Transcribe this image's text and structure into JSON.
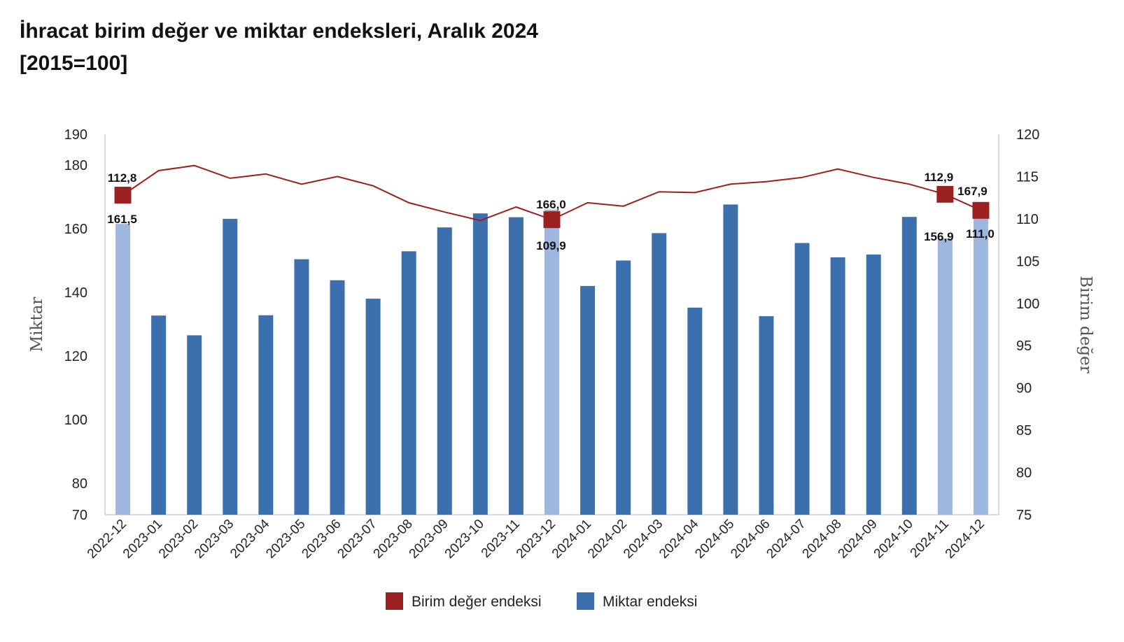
{
  "chart_data": {
    "type": "bar",
    "title": "İhracat birim değer ve miktar endeksleri, Aralık 2024",
    "subtitle": "[2015=100]",
    "xlabel": "",
    "ylabel": "Miktar",
    "y2label": "Birim değer",
    "ylim": [
      70,
      190
    ],
    "y2lim": [
      75,
      120
    ],
    "yticks": [
      "70",
      "80",
      "100",
      "120",
      "140",
      "160",
      "180",
      "190"
    ],
    "y2ticks": [
      "75",
      "80",
      "85",
      "90",
      "95",
      "100",
      "105",
      "110",
      "115",
      "120"
    ],
    "categories": [
      "2022-12",
      "2023-01",
      "2023-02",
      "2023-03",
      "2023-04",
      "2023-05",
      "2023-06",
      "2023-07",
      "2023-08",
      "2023-09",
      "2023-10",
      "2023-11",
      "2023-12",
      "2024-01",
      "2024-02",
      "2024-03",
      "2024-04",
      "2024-05",
      "2024-06",
      "2024-07",
      "2024-08",
      "2024-09",
      "2024-10",
      "2024-11",
      "2024-12"
    ],
    "series": [
      {
        "name": "Miktar endeksi",
        "type": "bar",
        "axis": "left",
        "color": "#3b6fad",
        "highlight_color": "#9fb6df",
        "values": [
          161.5,
          132.7,
          126.5,
          163.1,
          132.8,
          150.4,
          143.8,
          138.0,
          152.9,
          160.4,
          164.8,
          163.6,
          166.0,
          142.0,
          150.0,
          158.6,
          135.2,
          167.6,
          132.5,
          155.5,
          151.0,
          151.9,
          163.7,
          156.9,
          167.9
        ],
        "highlighted": [
          "2022-12",
          "2023-12",
          "2024-11",
          "2024-12"
        ]
      },
      {
        "name": "Birim değer endeksi",
        "type": "line",
        "axis": "right",
        "color": "#a11d1d",
        "values": [
          112.8,
          115.7,
          116.3,
          114.8,
          115.3,
          114.1,
          115.0,
          113.9,
          111.9,
          110.8,
          109.8,
          111.4,
          109.9,
          111.9,
          111.5,
          113.2,
          113.1,
          114.1,
          114.4,
          114.9,
          115.9,
          114.9,
          114.1,
          112.9,
          111.0
        ],
        "markers": [
          "2022-12",
          "2023-12",
          "2024-11",
          "2024-12"
        ]
      }
    ],
    "data_labels": [
      {
        "category": "2022-12",
        "line": "112,8",
        "bar": "161,5"
      },
      {
        "category": "2023-12",
        "line": "109,9",
        "bar": "166,0"
      },
      {
        "category": "2024-11",
        "line": "112,9",
        "bar": "156,9"
      },
      {
        "category": "2024-12",
        "line": "111,0",
        "bar": "167,9"
      }
    ],
    "legend": {
      "position": "bottom",
      "items": [
        {
          "label": "Birim değer endeksi",
          "color": "#9b2020"
        },
        {
          "label": "Miktar endeksi",
          "color": "#3b6fad"
        }
      ]
    },
    "grid": false
  }
}
